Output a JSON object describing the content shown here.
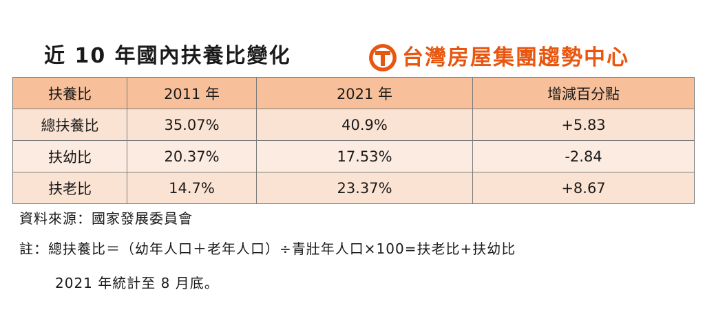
{
  "title": "近 10 年國內扶養比變化",
  "brand": {
    "name": "台灣房屋集團趨勢中心",
    "logo_icon": "taiwan-realty-t-logo-icon",
    "color": "#e8560f"
  },
  "colors": {
    "header_bg": "#f7c09a",
    "row_bg": "#fbe3d3",
    "row_alt_bg": "#fcebe0"
  },
  "table": {
    "headers": [
      "扶養比",
      "2011 年",
      "2021 年",
      "增減百分點"
    ],
    "rows": [
      [
        "總扶養比",
        "35.07%",
        "40.9%",
        "+5.83"
      ],
      [
        "扶幼比",
        "20.37%",
        "17.53%",
        "-2.84"
      ],
      [
        "扶老比",
        "14.7%",
        "23.37%",
        "+8.67"
      ]
    ]
  },
  "notes": {
    "source": "資料來源：國家發展委員會",
    "formula": "註：總扶養比＝（幼年人口＋老年人口）÷青壯年人口×100=扶老比+扶幼比",
    "stat_date": "2021 年統計至 8 月底。"
  }
}
